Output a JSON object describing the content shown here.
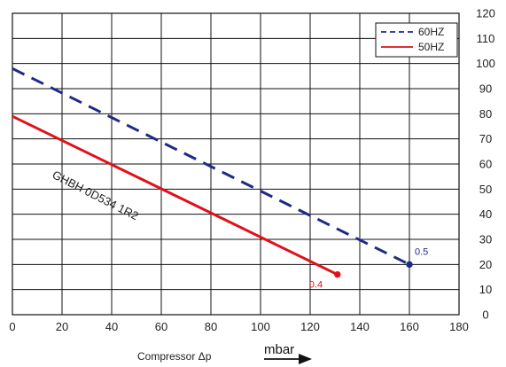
{
  "chart_data": {
    "type": "line",
    "xlabel": "Compressor  Δp",
    "xunit": "mbar",
    "xlim": [
      0,
      180
    ],
    "ylim": [
      0,
      120
    ],
    "x_ticks": [
      "0",
      "20",
      "40",
      "60",
      "80",
      "100",
      "120",
      "140",
      "160",
      "180"
    ],
    "y_ticks": [
      "0",
      "10",
      "20",
      "30",
      "40",
      "50",
      "60",
      "70",
      "80",
      "90",
      "100",
      "110",
      "120"
    ],
    "grid": true,
    "legend_position": "top-right",
    "series": [
      {
        "name": "60HZ",
        "style": "dashed",
        "color": "#1f2a85",
        "x": [
          0,
          160
        ],
        "y": [
          98,
          20
        ],
        "end_label": "0.5",
        "end_label_color": "#1f2a85"
      },
      {
        "name": "50HZ",
        "style": "solid",
        "color": "#e0111b",
        "x": [
          0,
          131
        ],
        "y": [
          79,
          16
        ],
        "end_label": "0.4",
        "end_label_color": "#e0111b"
      }
    ],
    "annotation": "GHBH 0D534 1R2"
  }
}
